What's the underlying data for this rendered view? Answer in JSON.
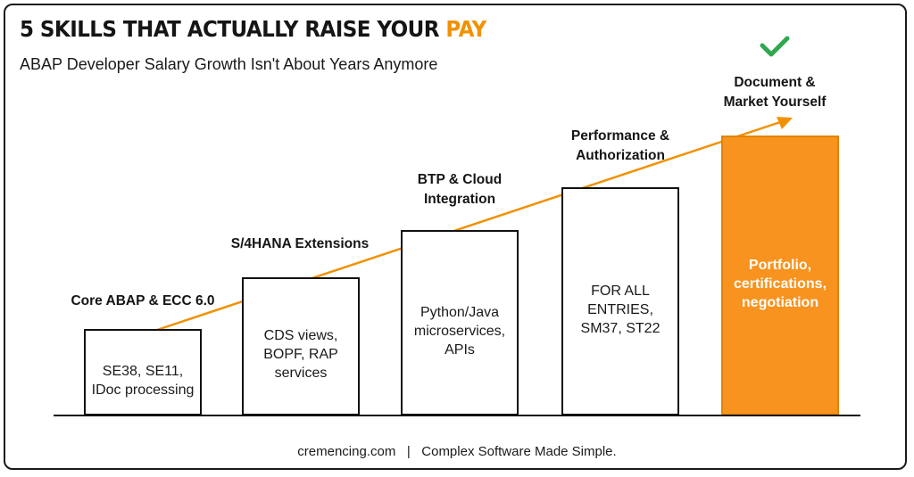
{
  "header": {
    "title_main": "5 SKILLS THAT ACTUALLY RAISE YOUR ",
    "title_accent": "PAY",
    "subtitle": "ABAP Developer Salary Growth Isn't About Years Anymore"
  },
  "steps": [
    {
      "label": "Core ABAP & ECC 6.0",
      "desc": "SE38, SE11, IDoc processing"
    },
    {
      "label": "S/4HANA Extensions",
      "desc": "CDS views, BOPF, RAP services"
    },
    {
      "label": "BTP & Cloud Integration",
      "desc": "Python/Java microservices, APIs"
    },
    {
      "label": "Performance & Authorization",
      "desc": "FOR ALL ENTRIES, SM37, ST22"
    },
    {
      "label": "Document & Market Yourself",
      "desc": "Portfolio, certifications, negotiation"
    }
  ],
  "icons": {
    "check": "checkmark-icon",
    "arrow": "trend-arrow-icon"
  },
  "colors": {
    "accent": "#f7931e",
    "check": "#2fa84f",
    "ink": "#151515"
  },
  "footer": {
    "site": "cremencing.com",
    "separator": "|",
    "tagline": "Complex Software Made Simple."
  }
}
